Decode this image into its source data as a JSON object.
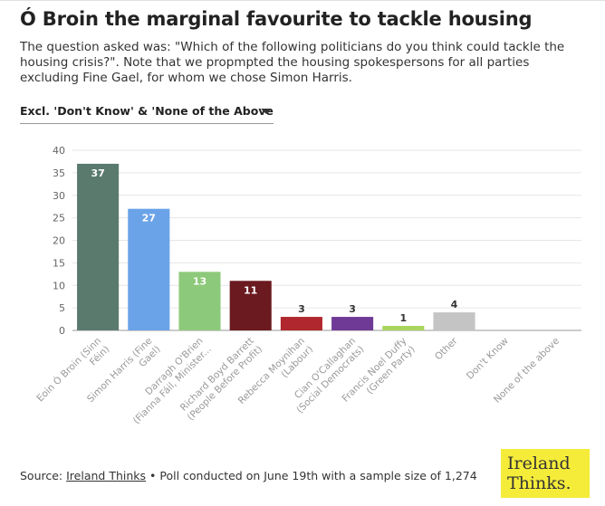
{
  "title": "Ó Broin the marginal favourite to tackle housing",
  "subtitle": "The question asked was: \"Which of the following politicians do you think could tackle the housing crisis?\". Note that we propmpted the housing spokespersons for all parties excluding Fine Gael, for whom we chose Simon Harris.",
  "dropdown": {
    "selected": "Excl. 'Don't Know' & 'None of the Above"
  },
  "footer": {
    "source_prefix": "Source: ",
    "source_link": "Ireland Thinks",
    "note": " • Poll conducted on June 19th with a sample size of 1,274"
  },
  "logo": {
    "line1": "Ireland",
    "line2": "Thinks."
  },
  "chart_data": {
    "type": "bar",
    "categories": [
      [
        "Eoin Ó Broin (Sinn",
        "Féin)"
      ],
      [
        "Simon Harris (Fine",
        "Gael)"
      ],
      [
        "Darragh O'Brien",
        "(Fianna Fáil, Minister..."
      ],
      [
        "Richard Boyd Barrett",
        "(People Before Profit)"
      ],
      [
        "Rebecca Moynihan",
        "(Labour)"
      ],
      [
        "Cian O'Callaghan",
        "(Social Democrats)"
      ],
      [
        "Francis Noel Duffy",
        "(Green Party)"
      ],
      [
        "Other"
      ],
      [
        "Don't Know"
      ],
      [
        "None of the above"
      ]
    ],
    "values": [
      37,
      27,
      13,
      11,
      3,
      3,
      1,
      4,
      0,
      0
    ],
    "data_labels": [
      "37",
      "27",
      "13",
      "11",
      "3",
      "3",
      "1",
      "4",
      "",
      ""
    ],
    "colors": [
      "#5a7a6e",
      "#6aa3e8",
      "#8dc97a",
      "#6b1a1f",
      "#b0272d",
      "#6f3a96",
      "#a8d65c",
      "#c4c4c4",
      "#c4c4c4",
      "#c4c4c4"
    ],
    "label_inside": [
      true,
      true,
      true,
      true,
      false,
      false,
      false,
      false,
      false,
      false
    ],
    "ylim": [
      0,
      40
    ],
    "yticks": [
      0,
      5,
      10,
      15,
      20,
      25,
      30,
      35,
      40
    ],
    "grid": true
  }
}
